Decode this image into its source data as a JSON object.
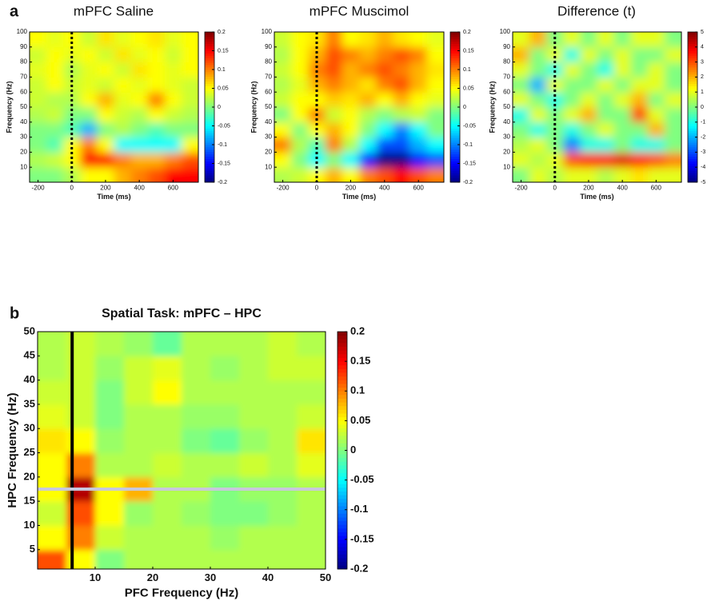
{
  "chart_data": [
    {
      "type": "heatmap",
      "panel_label": "a",
      "title": "mPFC Saline",
      "xlabel": "Time (ms)",
      "ylabel": "Frequency (Hz)",
      "x": [
        -200,
        -100,
        0,
        100,
        200,
        300,
        400,
        500,
        600,
        700
      ],
      "y": [
        5,
        15,
        25,
        35,
        45,
        55,
        65,
        75,
        85,
        95
      ],
      "xlim": [
        -250,
        750
      ],
      "ylim": [
        0,
        100
      ],
      "xticks": [
        -200,
        0,
        200,
        400,
        600
      ],
      "yticks": [
        10,
        20,
        30,
        40,
        50,
        60,
        70,
        80,
        90,
        100
      ],
      "clim": [
        -0.2,
        0.2
      ],
      "cticks": [
        0.2,
        0.15,
        0.1,
        0.05,
        0,
        -0.05,
        -0.1,
        -0.15,
        -0.2
      ],
      "colormap": "jet",
      "vline": 0,
      "vline_color": "#000000",
      "z": [
        [
          0,
          0,
          0.02,
          0.05,
          0.05,
          0.08,
          0.1,
          0.12,
          0.15,
          0.15
        ],
        [
          0.02,
          0.03,
          0.05,
          0.15,
          0.15,
          0.1,
          0.08,
          0.08,
          0.1,
          0.12
        ],
        [
          0,
          -0.02,
          0.05,
          0.1,
          0.05,
          -0.05,
          -0.05,
          -0.05,
          -0.05,
          0.05
        ],
        [
          0,
          0,
          -0.02,
          -0.08,
          0,
          0.02,
          0,
          -0.02,
          0,
          0
        ],
        [
          0.02,
          0.03,
          0,
          0,
          0.05,
          0.03,
          0.02,
          0.05,
          0.03,
          0.02
        ],
        [
          0.03,
          0.02,
          0.02,
          0.05,
          0.08,
          0.04,
          0.05,
          0.1,
          0.05,
          0.03
        ],
        [
          0.03,
          0.05,
          0.03,
          0.04,
          0.03,
          0.05,
          0.04,
          0.05,
          0.04,
          0.03
        ],
        [
          0.04,
          0.05,
          0.02,
          0.04,
          0.05,
          0.03,
          0.06,
          0.05,
          0.04,
          0.05
        ],
        [
          0.03,
          0.05,
          0.04,
          0.05,
          0.03,
          0.06,
          0.04,
          0.05,
          0.03,
          0.05
        ],
        [
          0.05,
          0.04,
          0.05,
          0.03,
          0.06,
          0.04,
          0.05,
          0.06,
          0.04,
          0.05
        ]
      ]
    },
    {
      "type": "heatmap",
      "title": "mPFC Muscimol",
      "xlabel": "Time (ms)",
      "ylabel": "Frequency (Hz)",
      "x": [
        -200,
        -100,
        0,
        100,
        200,
        300,
        400,
        500,
        600,
        700
      ],
      "y": [
        5,
        15,
        25,
        35,
        45,
        55,
        65,
        75,
        85,
        95
      ],
      "xlim": [
        -250,
        750
      ],
      "ylim": [
        0,
        100
      ],
      "xticks": [
        -200,
        0,
        200,
        400,
        600
      ],
      "yticks": [
        10,
        20,
        30,
        40,
        50,
        60,
        70,
        80,
        90,
        100
      ],
      "clim": [
        -0.2,
        0.2
      ],
      "cticks": [
        0.2,
        0.15,
        0.1,
        0.05,
        0,
        -0.05,
        -0.1,
        -0.15,
        -0.2
      ],
      "colormap": "jet",
      "vline": 0,
      "vline_color": "#000000",
      "z": [
        [
          0.02,
          0.03,
          0.05,
          0.08,
          0.05,
          0.1,
          0.12,
          0.15,
          0.12,
          0.1
        ],
        [
          0.05,
          0,
          -0.05,
          0,
          -0.05,
          -0.15,
          -0.2,
          -0.2,
          -0.15,
          -0.12
        ],
        [
          0.1,
          0.02,
          -0.02,
          0.1,
          0.02,
          -0.05,
          -0.12,
          -0.12,
          -0.08,
          -0.05
        ],
        [
          0.05,
          0,
          0.05,
          0.08,
          0.05,
          0,
          -0.05,
          -0.1,
          -0.05,
          0
        ],
        [
          0,
          0.05,
          0.1,
          0.03,
          0.05,
          0.02,
          0,
          0.02,
          0.03,
          0
        ],
        [
          0.03,
          0.05,
          0.05,
          0.07,
          0.06,
          0.08,
          0.05,
          0.08,
          0.05,
          0.04
        ],
        [
          0.02,
          0.04,
          0.08,
          0.1,
          0.08,
          0.06,
          0.1,
          0.12,
          0.08,
          0.05
        ],
        [
          0.03,
          0.05,
          0.1,
          0.12,
          0.08,
          0.1,
          0.12,
          0.1,
          0.08,
          0.06
        ],
        [
          0.02,
          0.05,
          0.08,
          0.12,
          0.1,
          0.08,
          0.1,
          0.12,
          0.1,
          0.05
        ],
        [
          0.03,
          0.05,
          0.06,
          0.1,
          0.05,
          0.06,
          0.08,
          0.06,
          0.05,
          0.04
        ]
      ]
    },
    {
      "type": "heatmap",
      "title": "Difference (t)",
      "xlabel": "Time (ms)",
      "ylabel": "Frequency (Hz)",
      "x": [
        -200,
        -100,
        0,
        100,
        200,
        300,
        400,
        500,
        600,
        700
      ],
      "y": [
        5,
        15,
        25,
        35,
        45,
        55,
        65,
        75,
        85,
        95
      ],
      "xlim": [
        -250,
        750
      ],
      "ylim": [
        0,
        100
      ],
      "xticks": [
        -200,
        0,
        200,
        400,
        600
      ],
      "yticks": [
        10,
        20,
        30,
        40,
        50,
        60,
        70,
        80,
        90,
        100
      ],
      "clim": [
        -5,
        5
      ],
      "cticks": [
        5,
        4,
        3,
        2,
        1,
        0,
        -1,
        -2,
        -3,
        -4,
        -5
      ],
      "colormap": "jet",
      "vline": 0,
      "vline_color": "#000000",
      "z": [
        [
          0,
          1,
          0.5,
          1,
          1,
          0.5,
          1,
          1.5,
          1,
          1
        ],
        [
          1,
          0.5,
          1,
          3,
          3.5,
          3.5,
          4,
          3.5,
          3,
          2.5
        ],
        [
          0.5,
          1,
          0,
          -2.5,
          -1,
          -1,
          0,
          -1,
          -1,
          0
        ],
        [
          0,
          -1,
          0,
          -1,
          0,
          1,
          0,
          0,
          2,
          0
        ],
        [
          -1,
          1,
          0,
          1,
          2,
          0,
          0,
          3,
          1,
          0
        ],
        [
          1,
          0,
          -1,
          0,
          1,
          0,
          1,
          2,
          0,
          1
        ],
        [
          0,
          -2,
          1,
          0,
          0,
          1,
          0,
          1,
          1,
          0
        ],
        [
          1,
          0,
          -1,
          1,
          0,
          -1,
          1,
          0,
          1,
          0
        ],
        [
          2,
          0,
          1,
          -1,
          1,
          0,
          1,
          0,
          0,
          1
        ],
        [
          1,
          2,
          0,
          1,
          0,
          1,
          0,
          1,
          1,
          0
        ]
      ]
    },
    {
      "type": "heatmap",
      "panel_label": "b",
      "title": "Spatial Task: mPFC – HPC",
      "xlabel": "PFC Frequency (Hz)",
      "ylabel": "HPC Frequency (Hz)",
      "x": [
        2.5,
        7.5,
        12.5,
        17.5,
        22.5,
        27.5,
        32.5,
        37.5,
        42.5,
        47.5
      ],
      "y": [
        2.5,
        7.5,
        12.5,
        17.5,
        22.5,
        27.5,
        32.5,
        37.5,
        42.5,
        47.5
      ],
      "xlim": [
        0,
        50
      ],
      "ylim": [
        1,
        50
      ],
      "xticks": [
        10,
        20,
        30,
        40,
        50
      ],
      "yticks": [
        5,
        10,
        15,
        20,
        25,
        30,
        35,
        40,
        45,
        50
      ],
      "clim": [
        -0.2,
        0.2
      ],
      "cticks": [
        0.2,
        0.15,
        0.1,
        0.05,
        0,
        -0.05,
        -0.1,
        -0.15,
        -0.2
      ],
      "colormap": "jet",
      "vline": 6,
      "vline_color": "#000000",
      "hline": 17.5,
      "hline_color": "#c8c8dc",
      "z": [
        [
          0.12,
          0.05,
          0,
          0.02,
          0.02,
          0.02,
          0.02,
          0.02,
          0.02,
          0.02
        ],
        [
          0.05,
          0.1,
          0.03,
          0.02,
          0.02,
          0.02,
          0.01,
          0.02,
          0.02,
          0.02
        ],
        [
          0.03,
          0.12,
          0.05,
          0.01,
          0.02,
          0.01,
          0,
          0,
          0.01,
          0.02
        ],
        [
          0.05,
          0.18,
          0.05,
          0.08,
          0.02,
          0.02,
          0,
          0.01,
          0.01,
          0.02
        ],
        [
          0.05,
          0.1,
          0.02,
          0.02,
          0.03,
          0.02,
          0.02,
          0.03,
          0.02,
          0.04
        ],
        [
          0.06,
          0.05,
          0.01,
          0.02,
          0.02,
          0,
          -0.01,
          0.01,
          0.02,
          0.06
        ],
        [
          0.04,
          0.03,
          0,
          0.02,
          0.02,
          0.01,
          0.01,
          0.02,
          0.02,
          0.03
        ],
        [
          0.03,
          0.03,
          0,
          0.03,
          0.05,
          0.02,
          0.02,
          0.02,
          0.02,
          0.02
        ],
        [
          0.02,
          0.03,
          0.01,
          0.03,
          0.04,
          0.02,
          0.01,
          0.02,
          0.03,
          0.03
        ],
        [
          0.02,
          0.03,
          0.02,
          0.01,
          -0.01,
          0.02,
          0.02,
          0.02,
          0.03,
          0.02
        ]
      ]
    }
  ]
}
